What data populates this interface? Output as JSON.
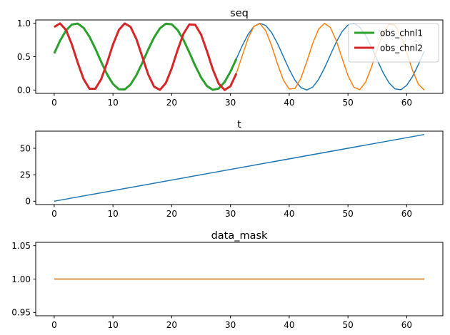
{
  "chart_data": [
    {
      "type": "line",
      "title": "seq",
      "xlabel": "",
      "ylabel": "",
      "xlim": [
        -3.15,
        66.15
      ],
      "ylim": [
        -0.05,
        1.05
      ],
      "xticks": [
        0,
        10,
        20,
        30,
        40,
        50,
        60
      ],
      "yticks": [
        0.0,
        0.5,
        1.0
      ],
      "xtick_labels": [
        "0",
        "10",
        "20",
        "30",
        "40",
        "50",
        "60"
      ],
      "ytick_labels": [
        "0.0",
        "0.5",
        "1.0"
      ],
      "grid": false,
      "legend": {
        "placement": "top-right",
        "entries": [
          "obs_chnl1",
          "obs_chnl2"
        ]
      },
      "series": [
        {
          "color": "#1f77b4",
          "linewidth": 1.5,
          "formula": "0.5+0.5*sin(x/2.5+0.1)",
          "x_range": [
            0,
            63
          ]
        },
        {
          "color": "#ff7f0e",
          "linewidth": 1.5,
          "formula": "0.5+0.5*sin(x/1.8+1.1)",
          "x_range": [
            0,
            63
          ]
        },
        {
          "name": "obs_chnl1",
          "color": "#2ca02c",
          "linewidth": 3,
          "formula": "0.5+0.5*sin(x/2.5+0.1)",
          "x_range": [
            0,
            31
          ]
        },
        {
          "name": "obs_chnl2",
          "color": "#d62728",
          "linewidth": 3,
          "formula": "0.5+0.5*sin(x/1.8+1.1)",
          "x_range": [
            0,
            31
          ]
        }
      ]
    },
    {
      "type": "line",
      "title": "t",
      "xlabel": "",
      "ylabel": "",
      "xlim": [
        -3.15,
        66.15
      ],
      "ylim": [
        -3.15,
        66.15
      ],
      "xticks": [
        0,
        10,
        20,
        30,
        40,
        50,
        60
      ],
      "yticks": [
        0,
        25,
        50
      ],
      "xtick_labels": [
        "0",
        "10",
        "20",
        "30",
        "40",
        "50",
        "60"
      ],
      "ytick_labels": [
        "0",
        "25",
        "50"
      ],
      "grid": false,
      "series": [
        {
          "color": "#1f77b4",
          "linewidth": 1.5,
          "x": [
            0,
            63
          ],
          "y": [
            0,
            63
          ]
        }
      ]
    },
    {
      "type": "line",
      "title": "data_mask",
      "xlabel": "",
      "ylabel": "",
      "xlim": [
        -3.15,
        66.15
      ],
      "ylim": [
        0.945,
        1.055
      ],
      "xticks": [
        0,
        10,
        20,
        30,
        40,
        50,
        60
      ],
      "yticks": [
        0.95,
        1.0,
        1.05
      ],
      "xtick_labels": [
        "0",
        "10",
        "20",
        "30",
        "40",
        "50",
        "60"
      ],
      "ytick_labels": [
        "0.95",
        "1.00",
        "1.05"
      ],
      "grid": false,
      "series": [
        {
          "color": "#1f77b4",
          "linewidth": 1.5,
          "x": [
            0,
            63
          ],
          "y": [
            1.0,
            1.0
          ]
        },
        {
          "color": "#ff7f0e",
          "linewidth": 1.5,
          "x": [
            0,
            63
          ],
          "y": [
            1.0,
            1.0
          ]
        }
      ]
    }
  ]
}
